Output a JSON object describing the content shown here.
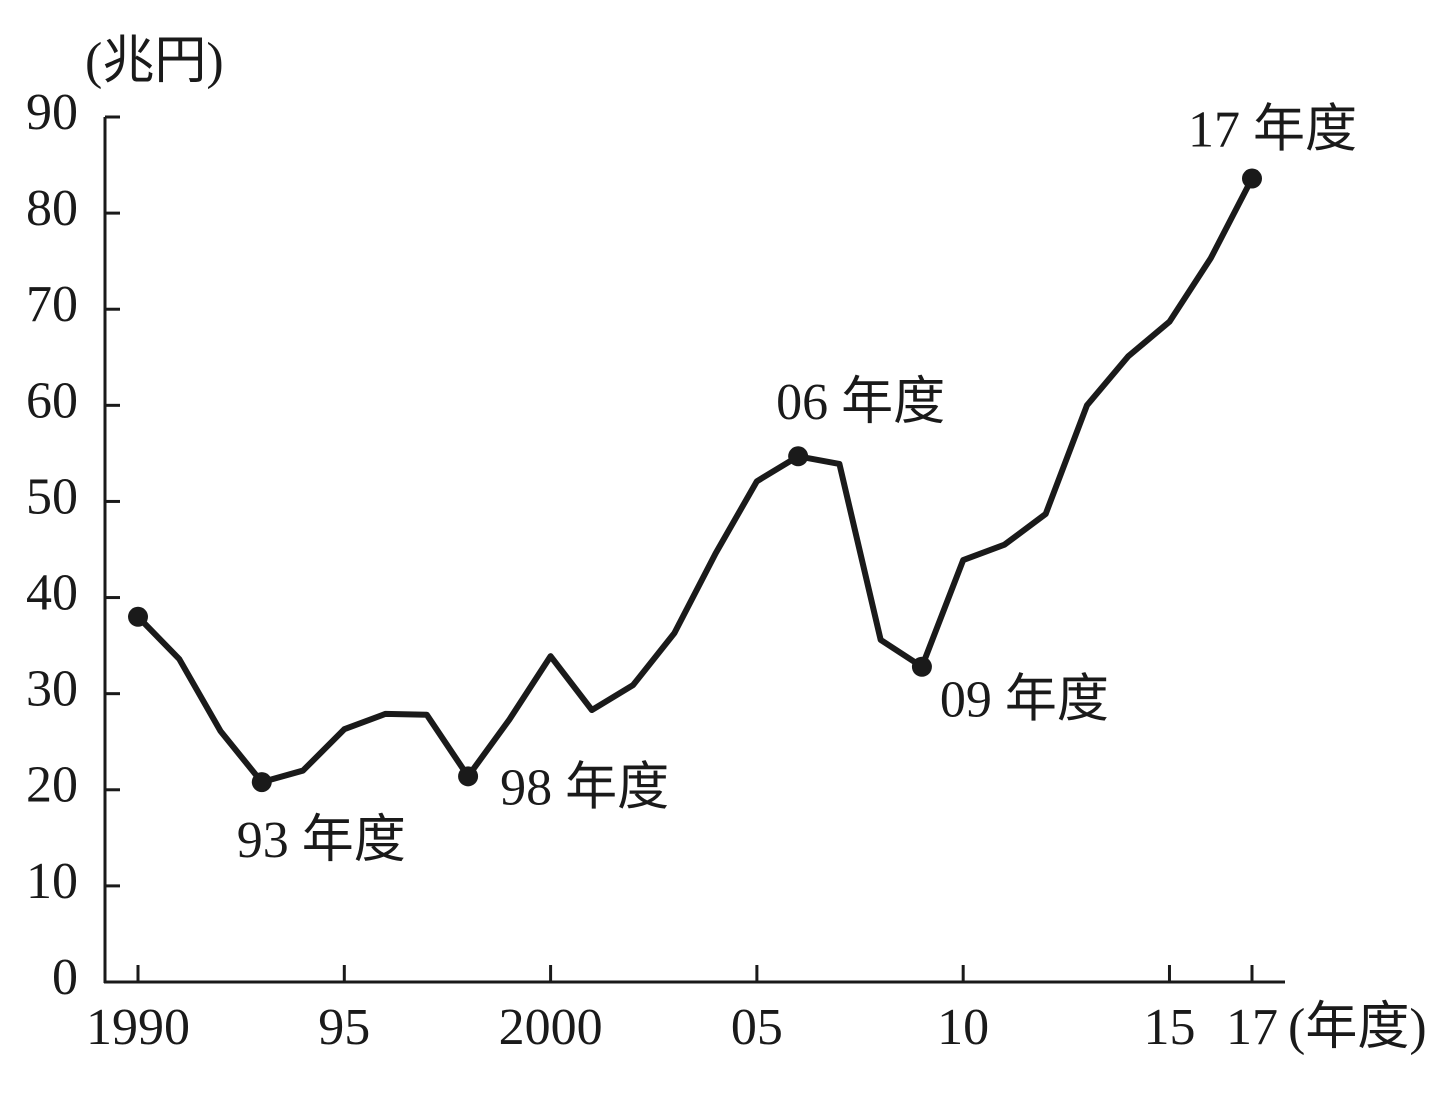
{
  "chart_data": {
    "type": "line",
    "y_unit_label": "(兆円)",
    "x_unit_label": "(年度)",
    "x": [
      1990,
      1991,
      1992,
      1993,
      1994,
      1995,
      1996,
      1997,
      1998,
      1999,
      2000,
      2001,
      2002,
      2003,
      2004,
      2005,
      2006,
      2007,
      2008,
      2009,
      2010,
      2011,
      2012,
      2013,
      2014,
      2015,
      2016,
      2017
    ],
    "values": [
      38.0,
      33.6,
      26.1,
      20.8,
      22.0,
      26.3,
      27.9,
      27.8,
      21.4,
      27.3,
      33.9,
      28.3,
      30.9,
      36.3,
      44.6,
      52.1,
      54.7,
      53.9,
      35.6,
      32.8,
      43.9,
      45.5,
      48.7,
      60.0,
      65.1,
      68.7,
      75.3,
      83.6
    ],
    "color": "#1a1a1a",
    "markers": [
      1990,
      1993,
      1998,
      2006,
      2009,
      2017
    ],
    "annotations": [
      {
        "x": 1993,
        "text": "93 年度"
      },
      {
        "x": 1998,
        "text": "98 年度"
      },
      {
        "x": 2006,
        "text": "06 年度"
      },
      {
        "x": 2009,
        "text": "09 年度"
      },
      {
        "x": 2017,
        "text": "17 年度"
      }
    ],
    "xlim": [
      1989.2,
      2017.8
    ],
    "xticks": [
      1990,
      {
        "value": 1995,
        "label": "95"
      },
      2000,
      {
        "value": 2005,
        "label": "05"
      },
      {
        "value": 2010,
        "label": "10"
      },
      {
        "value": 2015,
        "label": "15"
      },
      {
        "value": 2017,
        "label": "17"
      }
    ],
    "ylim": [
      0,
      90
    ],
    "yticks": [
      0,
      10,
      20,
      30,
      40,
      50,
      60,
      70,
      80,
      90
    ],
    "grid": false
  }
}
